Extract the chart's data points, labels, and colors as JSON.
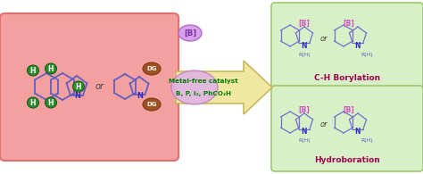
{
  "bg_color": "#ffffff",
  "left_box_color": "#f5a0a0",
  "left_box_edge": "#e07070",
  "right_top_box_color": "#d8f0c8",
  "right_top_box_edge": "#a0c870",
  "right_bot_box_color": "#d8f0c8",
  "right_bot_box_edge": "#a0c870",
  "arrow_color": "#f0e8a0",
  "arrow_edge": "#c8b860",
  "ellipse_color": "#e0b0e8",
  "ellipse_edge": "#c080c0",
  "catalyst_text_line1": "Metal-free catalyst",
  "catalyst_text_line2": "B, P, I₂, PhCO₂H",
  "catalyst_color": "#008000",
  "title_top": "C-H Borylation",
  "title_top_color": "#a00050",
  "title_bot": "Hydroboration",
  "title_bot_color": "#a00050",
  "H_color": "#2e8b2e",
  "H_edge": "#1a5c1a",
  "DG_color": "#a05020",
  "DG_edge": "#7a3a10",
  "molecule_line_color": "#6060c0",
  "N_color": "#3030c0",
  "B_label_color": "#d050c0",
  "R_label_color": "#6060c0",
  "indole_line_color": "#7070c8",
  "or_color": "#404040"
}
